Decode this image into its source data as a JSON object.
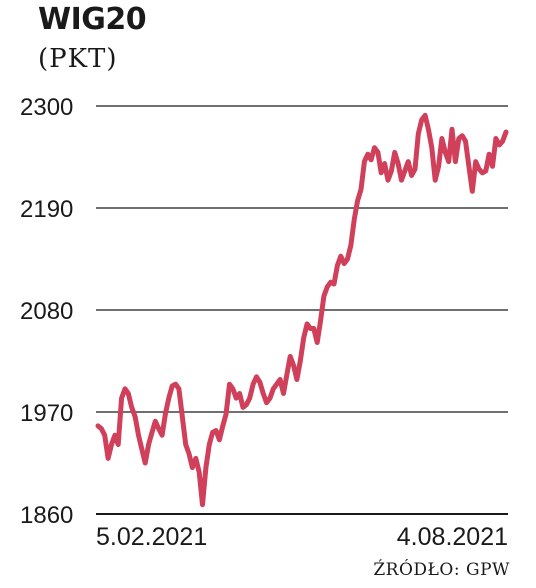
{
  "header": {
    "title": "WIG20",
    "unit": "(PKT)"
  },
  "source": "ŹRÓDŁO: GPW",
  "colors": {
    "line": "#d0405a",
    "grid": "#1a1a1a",
    "text": "#1a1a1a"
  },
  "chart_data": {
    "type": "line",
    "title": "WIG20",
    "ylabel": "(PKT)",
    "xlabel": "",
    "ylim": [
      1860,
      2300
    ],
    "yticks": [
      1860,
      1970,
      2080,
      2190,
      2300
    ],
    "ytick_labels": [
      "1860",
      "1970",
      "2080",
      "2190",
      "2300"
    ],
    "xtick_labels": [
      "5.02.2021",
      "4.08.2021"
    ],
    "grid": true,
    "series": [
      {
        "name": "",
        "values": [
          1955,
          1952,
          1945,
          1920,
          1935,
          1945,
          1935,
          1985,
          1995,
          1990,
          1975,
          1965,
          1945,
          1930,
          1915,
          1935,
          1948,
          1960,
          1952,
          1945,
          1968,
          1985,
          1998,
          2000,
          1995,
          1965,
          1935,
          1925,
          1910,
          1920,
          1905,
          1870,
          1910,
          1935,
          1948,
          1950,
          1940,
          1955,
          1968,
          2000,
          1995,
          1985,
          1990,
          1975,
          1978,
          1985,
          2000,
          2008,
          2002,
          1990,
          1980,
          1985,
          1995,
          2000,
          2005,
          1990,
          2010,
          2030,
          2020,
          2005,
          2025,
          2050,
          2065,
          2060,
          2060,
          2045,
          2068,
          2095,
          2105,
          2110,
          2108,
          2128,
          2138,
          2130,
          2135,
          2150,
          2178,
          2198,
          2210,
          2240,
          2248,
          2242,
          2255,
          2250,
          2228,
          2238,
          2220,
          2230,
          2250,
          2238,
          2220,
          2230,
          2240,
          2225,
          2232,
          2270,
          2285,
          2290,
          2275,
          2255,
          2220,
          2235,
          2265,
          2250,
          2240,
          2275,
          2240,
          2265,
          2268,
          2262,
          2235,
          2208,
          2240,
          2232,
          2228,
          2230,
          2248,
          2235,
          2265,
          2258,
          2262,
          2272
        ]
      }
    ]
  }
}
